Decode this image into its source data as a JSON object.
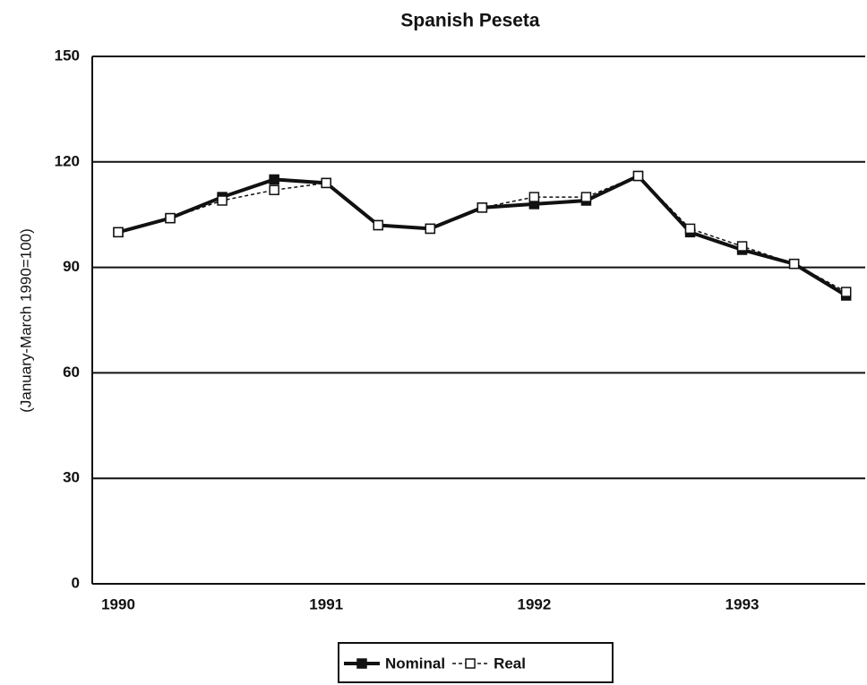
{
  "chart_data": {
    "type": "line",
    "title": "Spanish Peseta",
    "y_label": "(January-March 1990=100)",
    "categories": [
      "1990",
      null,
      null,
      null,
      "1991",
      null,
      null,
      null,
      "1992",
      null,
      null,
      null,
      "1993",
      null,
      null
    ],
    "series": [
      {
        "name": "Nominal",
        "color": "#111111",
        "marker": "filled-square",
        "line": "solid",
        "values": [
          100,
          104,
          110,
          115,
          114,
          102,
          101,
          107,
          108,
          109,
          116,
          100,
          95,
          91,
          82
        ]
      },
      {
        "name": "Real",
        "color": "#111111",
        "marker": "open-square",
        "line": "dashed",
        "values": [
          100,
          104,
          109,
          112,
          114,
          102,
          101,
          107,
          110,
          110,
          116,
          101,
          96,
          91,
          83
        ]
      }
    ],
    "ylim": [
      0,
      150
    ],
    "yticks": [
      0,
      30,
      60,
      90,
      120,
      150
    ],
    "grid": true,
    "legend": "bottom"
  }
}
